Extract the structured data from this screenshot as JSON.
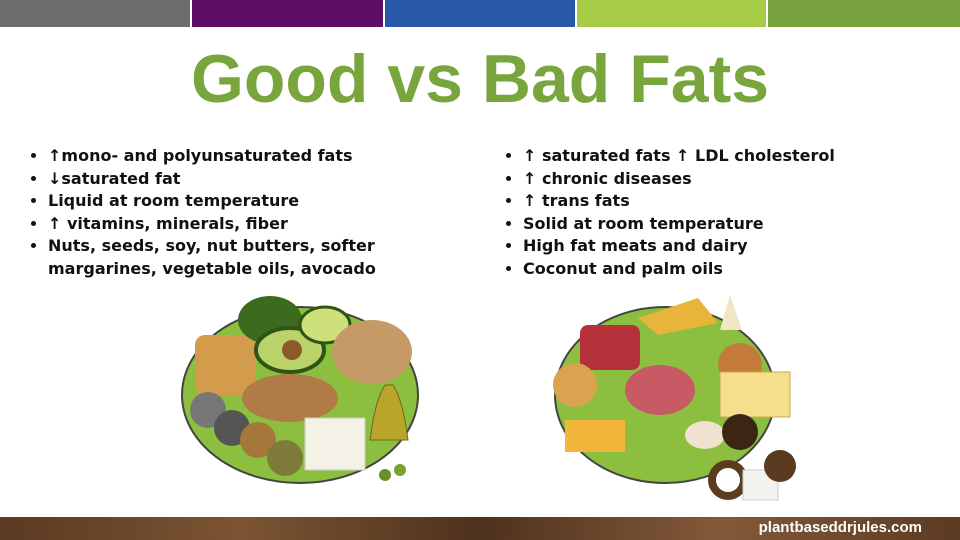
{
  "title": "Good vs Bad Fats",
  "left": {
    "items": [
      "↑mono- and polyunsaturated fats",
      "↓saturated fat",
      "Liquid at room temperature",
      "↑ vitamins, minerals, fiber",
      "Nuts, seeds, soy, nut butters, softer margarines, vegetable oils, avocado"
    ]
  },
  "right": {
    "items": [
      "↑ saturated fats ↑ LDL cholesterol",
      "↑ chronic diseases",
      "↑ trans fats",
      "Solid at room temperature",
      "High fat meats and dairy",
      "Coconut and palm oils"
    ]
  },
  "footer": {
    "url": "plantbaseddrjules.com"
  }
}
